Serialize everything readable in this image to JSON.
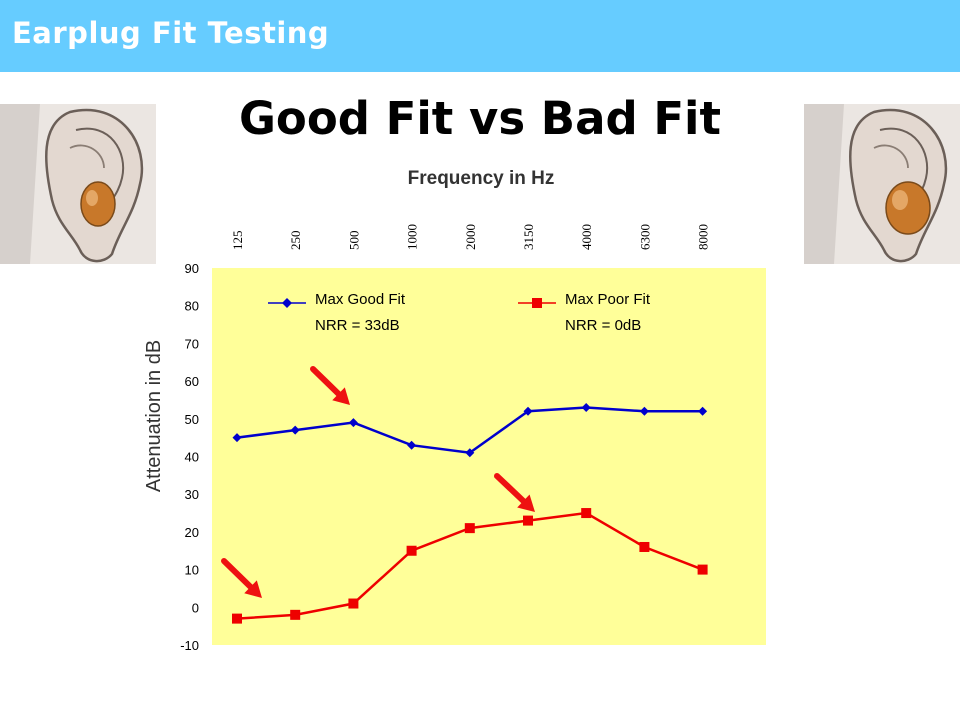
{
  "header": {
    "title": "Earplug Fit Testing"
  },
  "slide": {
    "title": "Good Fit vs Bad Fit"
  },
  "colors": {
    "header_bg": "#66ccff",
    "plot_bg": "#ffff99",
    "good_fit": "#0000cc",
    "poor_fit": "#ee0000",
    "arrow": "#ee1111",
    "ear_skin": "#d9cfc8",
    "earplug": "#c8782a"
  },
  "images": {
    "left": {
      "icon": "ear-with-good-fit-earplug-icon"
    },
    "right": {
      "icon": "ear-with-poor-fit-earplug-icon"
    }
  },
  "chart_data": {
    "type": "line",
    "xlabel": "Frequency in Hz",
    "ylabel": "Attenuation in dB",
    "categories": [
      "125",
      "250",
      "500",
      "1000",
      "2000",
      "3150",
      "4000",
      "6300",
      "8000"
    ],
    "yticks": [
      90,
      80,
      70,
      60,
      50,
      40,
      30,
      20,
      10,
      0,
      -10
    ],
    "ylim": [
      -10,
      90
    ],
    "grid": false,
    "legend_position": "top",
    "series": [
      {
        "name": "Max Good Fit",
        "note": "NRR = 33dB",
        "marker": "diamond",
        "values": [
          45,
          47,
          49,
          43,
          41,
          52,
          53,
          52,
          52
        ]
      },
      {
        "name": "Max Poor Fit",
        "note": "NRR = 0dB",
        "marker": "square",
        "values": [
          -3,
          -2,
          1,
          15,
          21,
          23,
          25,
          16,
          10
        ]
      }
    ]
  }
}
